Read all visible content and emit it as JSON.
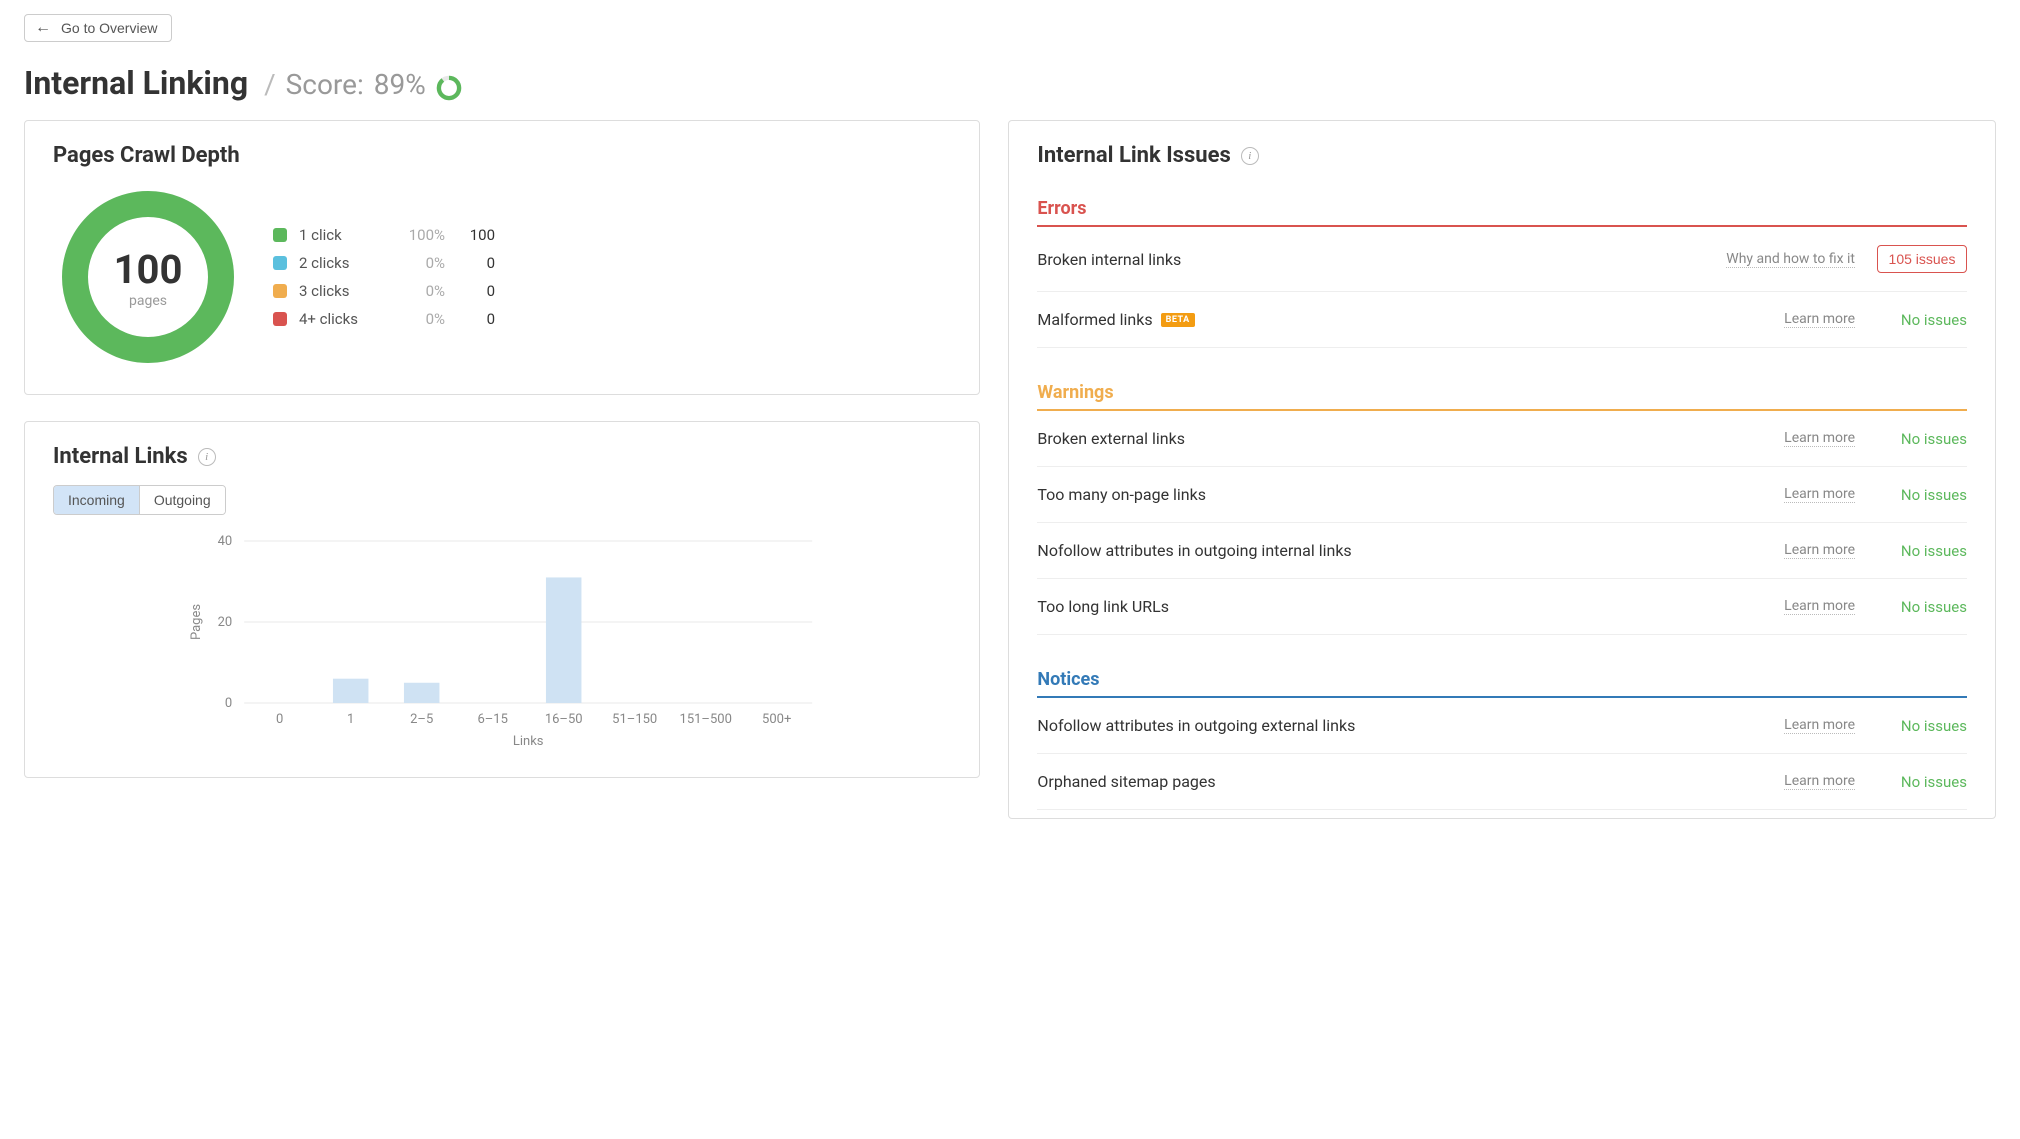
{
  "overview_button": "Go to Overview",
  "page_title": "Internal Linking",
  "score_label": "Score:",
  "score_value": "89%",
  "score_donut": {
    "percent": 89,
    "color": "#5cb85c",
    "track": "#e8e8e8"
  },
  "crawl_depth": {
    "title": "Pages Crawl Depth",
    "total_value": "100",
    "total_label": "pages",
    "donut": {
      "percent": 100,
      "color": "#5cb85c",
      "track": "#e8e8e8",
      "stroke": 26
    },
    "legend": [
      {
        "label": "1 click",
        "pct": "100%",
        "count": "100",
        "color": "#5cb85c"
      },
      {
        "label": "2 clicks",
        "pct": "0%",
        "count": "0",
        "color": "#5bc0de"
      },
      {
        "label": "3 clicks",
        "pct": "0%",
        "count": "0",
        "color": "#f0ad4e"
      },
      {
        "label": "4+ clicks",
        "pct": "0%",
        "count": "0",
        "color": "#d9534f"
      }
    ]
  },
  "internal_links": {
    "title": "Internal Links",
    "tabs": {
      "incoming": "Incoming",
      "outgoing": "Outgoing"
    },
    "chart": {
      "type": "bar",
      "ylabel": "Pages",
      "xlabel": "Links",
      "ymax": 40,
      "yticks": [
        0,
        20,
        40
      ],
      "categories": [
        "0",
        "1",
        "2–5",
        "6–15",
        "16–50",
        "51–150",
        "151–500",
        "500+"
      ],
      "values": [
        0,
        6,
        5,
        0,
        31,
        0,
        0,
        0
      ],
      "bar_color": "#cfe2f3",
      "grid_color": "#e8e8e8",
      "axis_color": "#cccccc",
      "text_color": "#888888"
    }
  },
  "issues": {
    "title": "Internal Link Issues",
    "no_issues_label": "No issues",
    "learn_more_label": "Learn more",
    "fix_label": "Why and how to fix it",
    "sections": {
      "errors": {
        "title": "Errors",
        "color": "#d9534f"
      },
      "warnings": {
        "title": "Warnings",
        "color": "#f0ad4e"
      },
      "notices": {
        "title": "Notices",
        "color": "#337ab7"
      }
    },
    "errors_items": [
      {
        "name": "Broken internal links",
        "action": "fix",
        "status": "issues",
        "issues_text": "105 issues"
      },
      {
        "name": "Malformed links",
        "action": "learn",
        "status": "ok",
        "beta": "BETA"
      }
    ],
    "warnings_items": [
      {
        "name": "Broken external links",
        "action": "learn",
        "status": "ok"
      },
      {
        "name": "Too many on-page links",
        "action": "learn",
        "status": "ok"
      },
      {
        "name": "Nofollow attributes in outgoing internal links",
        "action": "learn",
        "status": "ok"
      },
      {
        "name": "Too long link URLs",
        "action": "learn",
        "status": "ok"
      }
    ],
    "notices_items": [
      {
        "name": "Nofollow attributes in outgoing external links",
        "action": "learn",
        "status": "ok"
      },
      {
        "name": "Orphaned sitemap pages",
        "action": "learn",
        "status": "ok"
      }
    ]
  }
}
